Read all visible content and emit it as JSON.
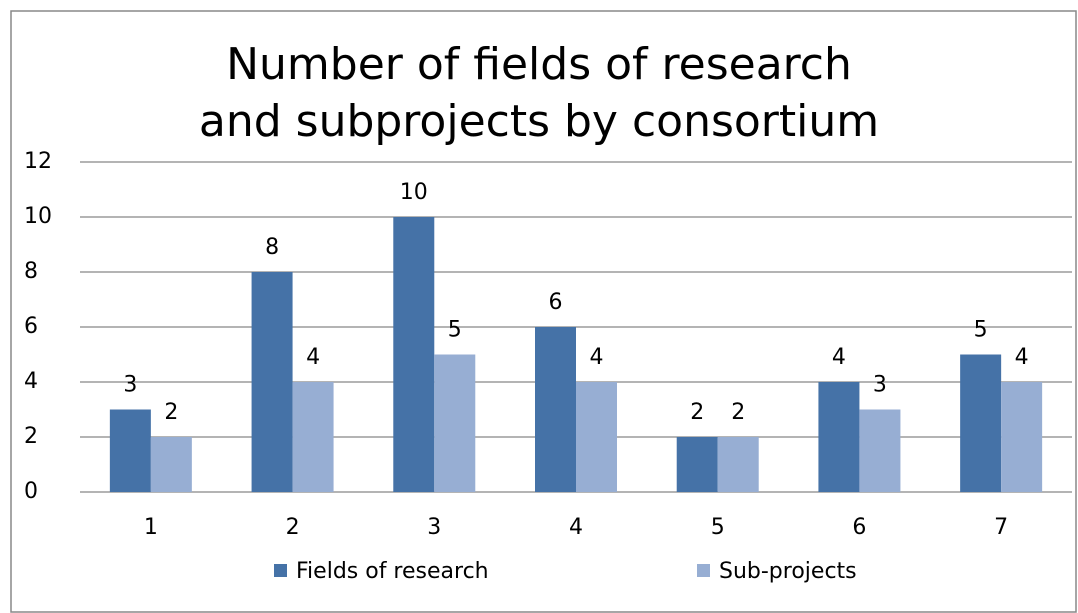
{
  "chart_data": {
    "type": "bar",
    "title": "Number of fields of research and subprojects by consortium",
    "categories": [
      "1",
      "2",
      "3",
      "4",
      "5",
      "6",
      "7"
    ],
    "series": [
      {
        "name": "Fields of research",
        "color": "#4572a7",
        "values": [
          3,
          8,
          10,
          6,
          2,
          4,
          5
        ]
      },
      {
        "name": "Sub-projects",
        "color": "#97aed3",
        "values": [
          2,
          4,
          5,
          4,
          2,
          3,
          4
        ]
      }
    ],
    "ylim": [
      0,
      12
    ],
    "yticks": [
      0,
      2,
      4,
      6,
      8,
      10,
      12
    ],
    "grid": true,
    "legend": "bottom"
  }
}
